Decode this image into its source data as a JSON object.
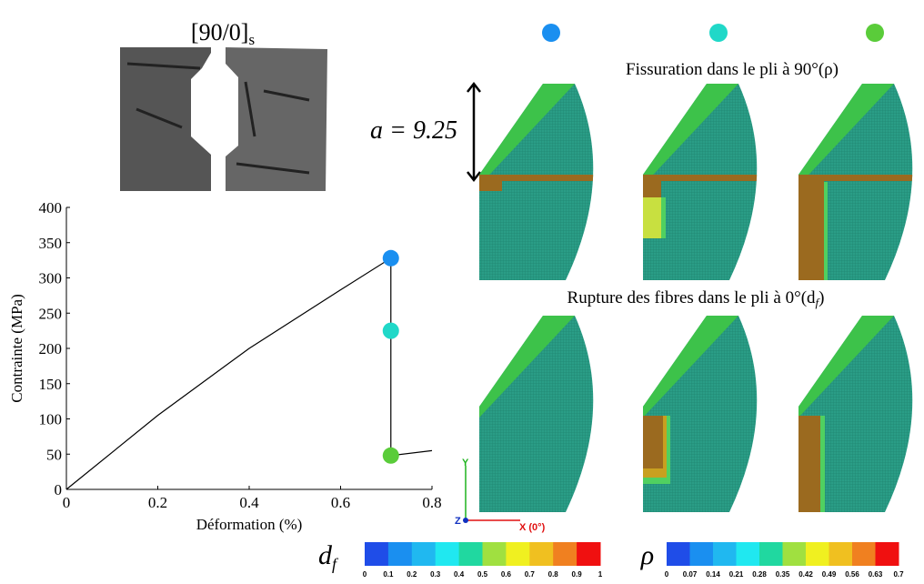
{
  "chart_data": {
    "type": "line",
    "xlabel": "Déformation (%)",
    "ylabel": "Contrainte (MPa)",
    "xlim": [
      0,
      0.8
    ],
    "ylim": [
      0,
      400
    ],
    "xticks": [
      0,
      0.2,
      0.4,
      0.6,
      0.8
    ],
    "yticks": [
      0,
      50,
      100,
      150,
      200,
      250,
      300,
      350,
      400
    ],
    "series": [
      {
        "x": [
          0,
          0.2,
          0.4,
          0.6,
          0.71,
          0.71,
          0.8
        ],
        "values": [
          0,
          105,
          200,
          283,
          328,
          48,
          55
        ],
        "color": "#000000"
      },
      {
        "x": [
          0.71,
          0.71,
          0.71
        ],
        "values": [
          328,
          225,
          48
        ],
        "colors": [
          "#1a8ff0",
          "#20d8c8",
          "#5acc3a"
        ],
        "marker": "circle"
      }
    ]
  },
  "figure": {
    "title": [
      "[90/0]",
      "s"
    ],
    "annotation": "a = 9.25",
    "headings": [
      [
        "Fissuration dans le pli à 90°(ρ)"
      ],
      [
        "Rupture des fibres dans le pli à 0°(d",
        "f",
        ")"
      ]
    ],
    "axes_triad": {
      "y": "Y",
      "z": "Z",
      "x": "X (0°)"
    },
    "colorbars": [
      {
        "label": [
          "d",
          "f"
        ],
        "ticks": [
          0,
          0.1,
          0.2,
          0.3,
          0.4,
          0.5,
          0.6,
          0.7,
          0.8,
          0.9,
          1
        ]
      },
      {
        "label": [
          "ρ"
        ],
        "ticks": [
          0,
          0.07,
          0.14,
          0.21,
          0.28,
          0.35,
          0.42,
          0.49,
          0.56,
          0.63,
          0.7
        ]
      }
    ],
    "colorbar_colors": [
      "#1f4de8",
      "#1a8ff0",
      "#20b8f0",
      "#20e8f0",
      "#20d8a0",
      "#a0e040",
      "#f0f020",
      "#f0c020",
      "#f08020",
      "#f01010"
    ]
  }
}
